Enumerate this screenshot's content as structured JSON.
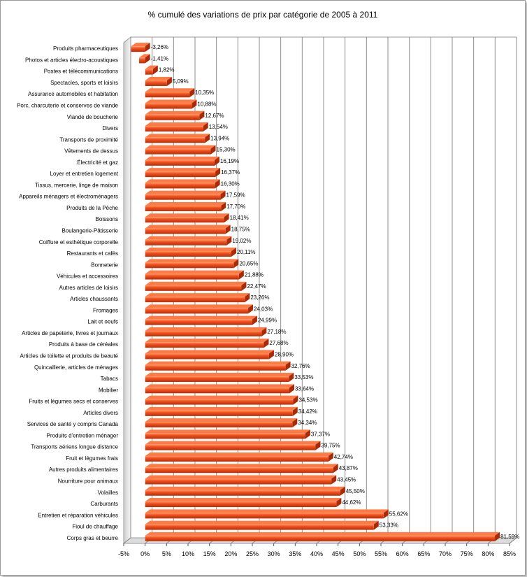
{
  "chart_data": {
    "type": "bar",
    "orientation": "horizontal",
    "style": "3d",
    "title": "% cumulé des variations de prix par catégorie de 2005 à 2011",
    "xlabel": "",
    "ylabel": "",
    "xlim": [
      -5,
      85
    ],
    "x_ticks": [
      -5,
      0,
      5,
      10,
      15,
      20,
      25,
      30,
      35,
      40,
      45,
      50,
      55,
      60,
      65,
      70,
      75,
      80,
      85
    ],
    "x_tick_labels": [
      "-5%",
      "0%",
      "5%",
      "10%",
      "15%",
      "20%",
      "25%",
      "30%",
      "35%",
      "40%",
      "45%",
      "50%",
      "55%",
      "60%",
      "65%",
      "70%",
      "75%",
      "80%",
      "85%"
    ],
    "grid": true,
    "legend": false,
    "bar_color": "#e8431a",
    "categories": [
      "Produits pharmaceutiques",
      "Photos et articles électro-acoustiques",
      "Postes et télécommunications",
      "Spectacles, sports et loisirs",
      "Assurance automobiles et habitation",
      "Porc, charcuterie et conserves de viande",
      "Viande de boucherie",
      "Divers",
      "Transports de proximité",
      "Vêtements de dessus",
      "Électricité et gaz",
      "Loyer et entretien logement",
      "Tissus, mercerie, linge de maison",
      "Appareils ménagers et électroménagers",
      "Produits de la Pêche",
      "Boissons",
      "Boulangerie-Pâtisserie",
      "Coiffure et esthétique corporelle",
      "Restaurants et cafés",
      "Bonneterie",
      "Véhicules et accessoires",
      "Autres articles de loisirs",
      "Articles chaussants",
      "Fromages",
      "Lait et oeufs",
      "Articles de papeterie, livres et journaux",
      "Produits à base de céréales",
      "Articles de toilette et produits de beauté",
      "Quincaillerie, articles de ménages",
      "Tabacs",
      "Mobilier",
      "Fruits et légumes secs et conserves",
      "Articles divers",
      "Services de santé y compris Canada",
      "Produits d'entretien ménager",
      "Transports aériens longue distance",
      "Fruit et légumes frais",
      "Autres produits alimentaires",
      "Nourriture pour animaux",
      "Volailles",
      "Carburants",
      "Entretien et réparation véhicules",
      "Fioul de chauffage",
      "Corps gras et beurre"
    ],
    "values": [
      -3.26,
      -1.41,
      1.82,
      5.09,
      10.35,
      10.88,
      12.67,
      13.54,
      13.94,
      15.3,
      16.19,
      16.37,
      16.3,
      17.59,
      17.7,
      18.41,
      18.75,
      19.02,
      20.11,
      20.65,
      21.88,
      22.47,
      23.26,
      24.03,
      24.99,
      27.18,
      27.68,
      28.9,
      32.76,
      33.53,
      33.64,
      34.53,
      34.42,
      34.34,
      37.37,
      39.75,
      42.74,
      43.87,
      43.45,
      45.5,
      44.62,
      55.62,
      53.33,
      81.59
    ],
    "value_labels": [
      "-3,26%",
      "-1,41%",
      "1,82%",
      "5,09%",
      "10,35%",
      "10,88%",
      "12,67%",
      "13,54%",
      "13,94%",
      "15,30%",
      "16,19%",
      "16,37%",
      "16,30%",
      "17,59%",
      "17,70%",
      "18,41%",
      "18,75%",
      "19,02%",
      "20,11%",
      "20,65%",
      "21,88%",
      "22,47%",
      "23,26%",
      "24,03%",
      "24,99%",
      "27,18%",
      "27,68%",
      "28,90%",
      "32,76%",
      "33,53%",
      "33,64%",
      "34,53%",
      "34,42%",
      "34,34%",
      "37,37%",
      "39,75%",
      "42,74%",
      "43,87%",
      "43,45%",
      "45,50%",
      "44,62%",
      "55,62%",
      "53,33%",
      "81,59%"
    ]
  }
}
